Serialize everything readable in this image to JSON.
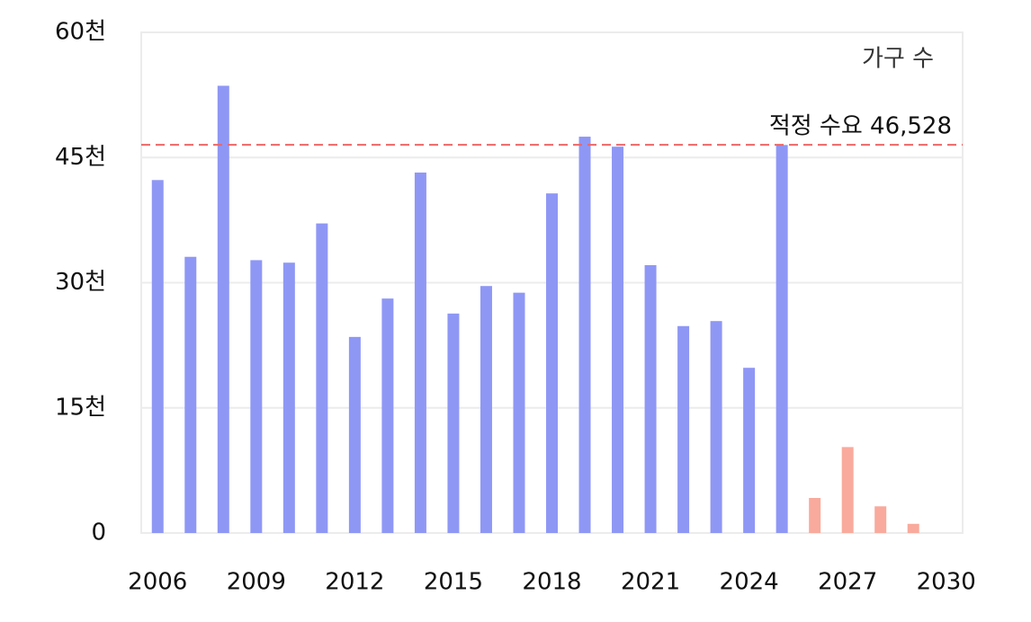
{
  "chart_data": {
    "type": "bar",
    "annotation": "가구 수",
    "series": [
      {
        "color": "#8f97f5",
        "x": [
          2006,
          2007,
          2008,
          2009,
          2010,
          2011,
          2012,
          2013,
          2014,
          2015,
          2016,
          2017,
          2018,
          2019,
          2020,
          2021,
          2022,
          2023,
          2024,
          2025
        ],
        "values": [
          42300,
          33100,
          53600,
          32700,
          32400,
          37100,
          23500,
          28100,
          43200,
          26300,
          29600,
          28800,
          40700,
          47500,
          46300,
          32100,
          24800,
          25400,
          19800,
          46500
        ]
      },
      {
        "color": "#f9aa9c",
        "x": [
          2026,
          2027,
          2028,
          2029
        ],
        "values": [
          4200,
          10300,
          3200,
          1100
        ]
      }
    ],
    "reference_line": {
      "value": 46528,
      "label": "적정 수요 46,528",
      "color": "#ee6666"
    },
    "xlim": [
      2005.5,
      2030.5
    ],
    "xticks": [
      2006,
      2009,
      2012,
      2015,
      2018,
      2021,
      2024,
      2027,
      2030
    ],
    "ylim": [
      0,
      60000
    ],
    "yticks": [
      {
        "value": 0,
        "label": "0"
      },
      {
        "value": 15000,
        "label": "15천"
      },
      {
        "value": 30000,
        "label": "30천"
      },
      {
        "value": 45000,
        "label": "45천"
      },
      {
        "value": 60000,
        "label": "60천"
      }
    ],
    "grid": true
  }
}
